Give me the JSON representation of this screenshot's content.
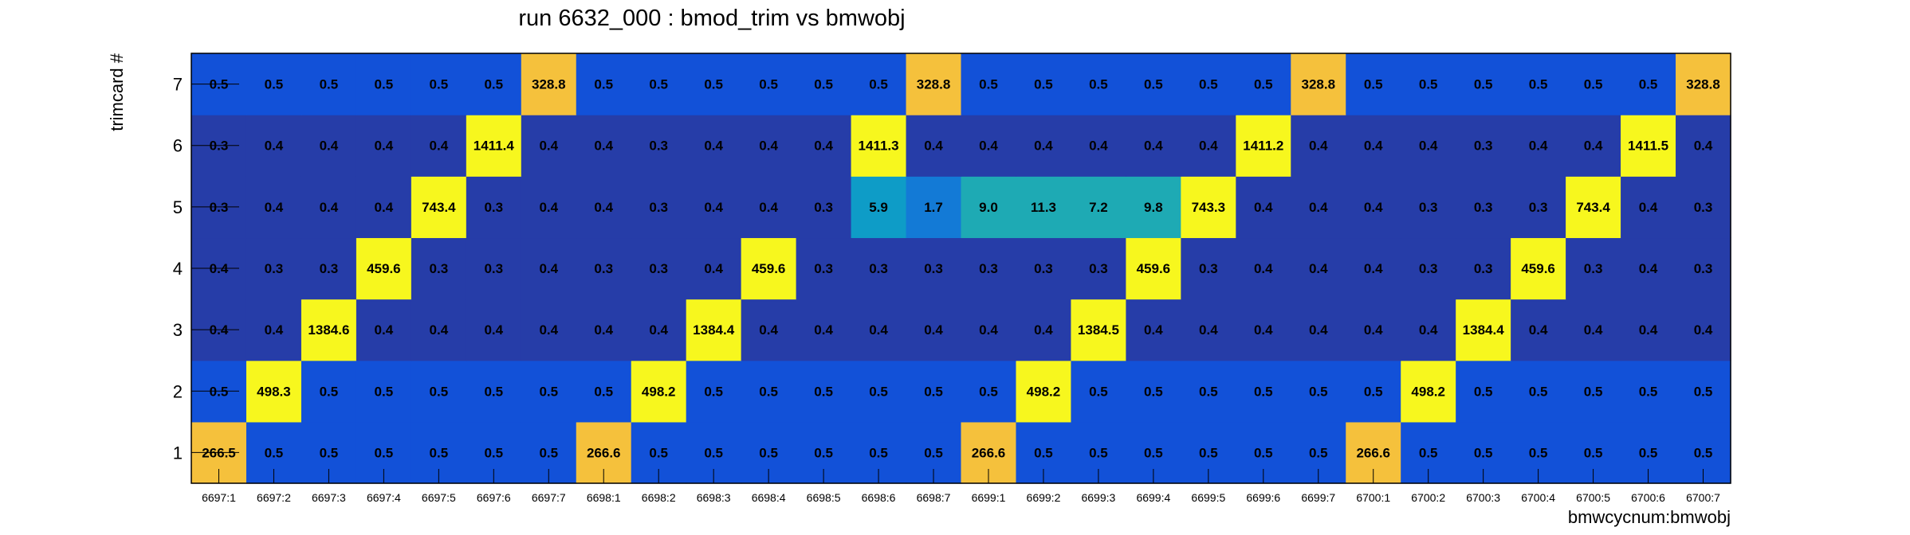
{
  "chart_data": {
    "type": "heatmap",
    "title": "run 6632_000 : bmod_trim vs bmwobj",
    "xlabel": "bmwcycnum:bmwobj",
    "ylabel": "trimcard #",
    "x_categories": [
      "6697:1",
      "6697:2",
      "6697:3",
      "6697:4",
      "6697:5",
      "6697:6",
      "6697:7",
      "6698:1",
      "6698:2",
      "6698:3",
      "6698:4",
      "6698:5",
      "6698:6",
      "6698:7",
      "6699:1",
      "6699:2",
      "6699:3",
      "6699:4",
      "6699:5",
      "6699:6",
      "6699:7",
      "6700:1",
      "6700:2",
      "6700:3",
      "6700:4",
      "6700:5",
      "6700:6",
      "6700:7"
    ],
    "y_categories": [
      "1",
      "2",
      "3",
      "4",
      "5",
      "6",
      "7"
    ],
    "values": [
      [
        266.5,
        0.5,
        0.5,
        0.5,
        0.5,
        0.5,
        0.5,
        266.6,
        0.5,
        0.5,
        0.5,
        0.5,
        0.5,
        0.5,
        266.6,
        0.5,
        0.5,
        0.5,
        0.5,
        0.5,
        0.5,
        266.6,
        0.5,
        0.5,
        0.5,
        0.5,
        0.5,
        0.5
      ],
      [
        0.5,
        498.3,
        0.5,
        0.5,
        0.5,
        0.5,
        0.5,
        0.5,
        498.2,
        0.5,
        0.5,
        0.5,
        0.5,
        0.5,
        0.5,
        498.2,
        0.5,
        0.5,
        0.5,
        0.5,
        0.5,
        0.5,
        498.2,
        0.5,
        0.5,
        0.5,
        0.5,
        0.5
      ],
      [
        0.4,
        0.4,
        1384.6,
        0.4,
        0.4,
        0.4,
        0.4,
        0.4,
        0.4,
        1384.4,
        0.4,
        0.4,
        0.4,
        0.4,
        0.4,
        0.4,
        1384.5,
        0.4,
        0.4,
        0.4,
        0.4,
        0.4,
        0.4,
        1384.4,
        0.4,
        0.4,
        0.4,
        0.4
      ],
      [
        0.4,
        0.3,
        0.3,
        459.6,
        0.3,
        0.3,
        0.4,
        0.3,
        0.3,
        0.4,
        459.6,
        0.3,
        0.3,
        0.3,
        0.3,
        0.3,
        0.3,
        459.6,
        0.3,
        0.4,
        0.4,
        0.4,
        0.3,
        0.3,
        459.6,
        0.3,
        0.4,
        0.3
      ],
      [
        0.3,
        0.4,
        0.4,
        0.4,
        743.4,
        0.3,
        0.4,
        0.4,
        0.3,
        0.4,
        0.4,
        0.3,
        5.9,
        1.7,
        9.0,
        11.3,
        7.2,
        9.8,
        743.3,
        0.4,
        0.4,
        0.4,
        0.3,
        0.3,
        0.3,
        743.4,
        0.4,
        0.3
      ],
      [
        0.3,
        0.4,
        0.4,
        0.4,
        0.4,
        1411.4,
        0.4,
        0.4,
        0.3,
        0.4,
        0.4,
        0.4,
        1411.3,
        0.4,
        0.4,
        0.4,
        0.4,
        0.4,
        0.4,
        1411.2,
        0.4,
        0.4,
        0.4,
        0.3,
        0.4,
        0.4,
        1411.5,
        0.4
      ],
      [
        0.5,
        0.5,
        0.5,
        0.5,
        0.5,
        0.5,
        328.8,
        0.5,
        0.5,
        0.5,
        0.5,
        0.5,
        0.5,
        328.8,
        0.5,
        0.5,
        0.5,
        0.5,
        0.5,
        0.5,
        328.8,
        0.5,
        0.5,
        0.5,
        0.5,
        0.5,
        0.5,
        328.8
      ]
    ],
    "color_levels": [
      {
        "max": 0.45,
        "color": "#263da8"
      },
      {
        "max": 1.0,
        "color": "#1251d8"
      },
      {
        "max": 3.0,
        "color": "#137ad6"
      },
      {
        "max": 7.0,
        "color": "#0e9cc7"
      },
      {
        "max": 12.0,
        "color": "#1eaab4"
      },
      {
        "max": 400,
        "color": "#f5c13c"
      },
      {
        "max": 1500,
        "color": "#f7f71e"
      }
    ],
    "grid": false,
    "legend": "none"
  }
}
